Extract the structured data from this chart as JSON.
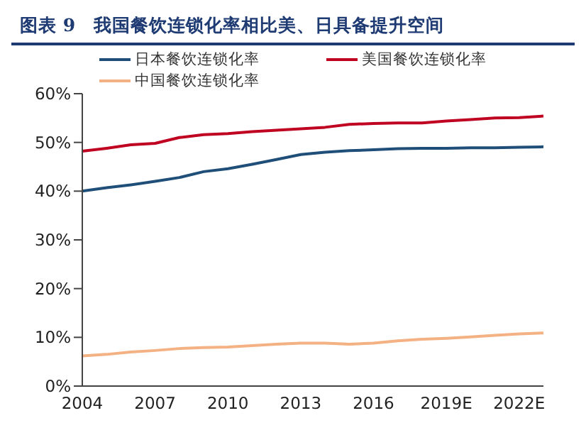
{
  "chart_data": {
    "type": "line",
    "title": "图表 9   我国餐饮连锁化率相比美、日具备提升空间",
    "categories": [
      "2004",
      null,
      null,
      "2007",
      null,
      null,
      "2010",
      null,
      null,
      "2013",
      null,
      null,
      "2016",
      null,
      null,
      "2019E",
      null,
      null,
      "2022E",
      null
    ],
    "series": [
      {
        "name": "日本餐饮连锁化率",
        "color": "#1f4e79",
        "values": [
          40,
          40.7,
          41.3,
          42,
          42.8,
          44,
          44.6,
          45.5,
          46.5,
          47.5,
          48,
          48.3,
          48.5,
          48.7,
          48.8,
          48.8,
          48.9,
          48.9,
          49,
          49.1
        ]
      },
      {
        "name": "美国餐饮连锁化率",
        "color": "#c00020",
        "values": [
          48.2,
          48.8,
          49.5,
          49.8,
          51,
          51.6,
          51.8,
          52.2,
          52.5,
          52.8,
          53.1,
          53.7,
          53.9,
          54,
          54,
          54.4,
          54.7,
          55,
          55.1,
          55.4
        ]
      },
      {
        "name": "中国餐饮连锁化率",
        "color": "#f4b183",
        "values": [
          6.2,
          6.5,
          7,
          7.3,
          7.7,
          7.9,
          8,
          8.3,
          8.6,
          8.8,
          8.8,
          8.6,
          8.8,
          9.3,
          9.6,
          9.8,
          10.1,
          10.4,
          10.7,
          10.9
        ]
      }
    ],
    "ylim": [
      0,
      60
    ],
    "yticks": [
      {
        "value": 0,
        "label": "0%"
      },
      {
        "value": 10,
        "label": "10%"
      },
      {
        "value": 20,
        "label": "20%"
      },
      {
        "value": 30,
        "label": "30%"
      },
      {
        "value": 40,
        "label": "40%"
      },
      {
        "value": 50,
        "label": "50%"
      },
      {
        "value": 60,
        "label": "60%"
      }
    ],
    "grid": false,
    "legend": "top left",
    "marker": "none",
    "line_style": "solid"
  }
}
